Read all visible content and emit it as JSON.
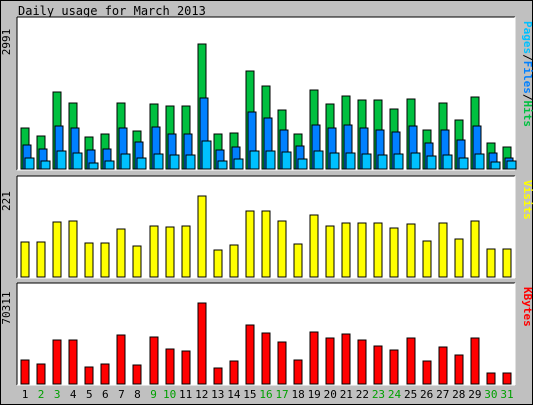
{
  "title": "Daily usage for March 2013",
  "colors": {
    "background": "#c0c0c0",
    "panel": "#ffffff",
    "hits": "#00c040",
    "files": "#0080ff",
    "pages": "#00c0ff",
    "visits": "#ffff00",
    "kbytes": "#ff0000",
    "weekend_label": "#00a000",
    "weekday_label": "#000000"
  },
  "chart_data": [
    {
      "type": "bar",
      "panel": "hits-files-pages",
      "max_label": "2991",
      "ylim": [
        0,
        2991
      ],
      "legend": [
        "Pages",
        "/",
        "Files",
        "/",
        "Hits"
      ],
      "legend_colors": [
        "#00c0ff",
        "#000000",
        "#0080ff",
        "#000000",
        "#00c040"
      ],
      "categories": [
        "1",
        "2",
        "3",
        "4",
        "5",
        "6",
        "7",
        "8",
        "9",
        "10",
        "11",
        "12",
        "13",
        "14",
        "15",
        "16",
        "17",
        "18",
        "19",
        "20",
        "21",
        "22",
        "23",
        "24",
        "25",
        "26",
        "27",
        "28",
        "29",
        "30",
        "31"
      ],
      "series": [
        {
          "name": "Hits",
          "values": [
            990,
            790,
            1840,
            1570,
            770,
            830,
            1580,
            920,
            1550,
            1510,
            1510,
            2991,
            830,
            870,
            2350,
            1990,
            1400,
            830,
            1880,
            1560,
            1740,
            1640,
            1640,
            1440,
            1680,
            930,
            1570,
            1180,
            1720,
            620,
            530
          ]
        },
        {
          "name": "Files",
          "values": [
            580,
            490,
            1030,
            970,
            450,
            470,
            980,
            650,
            1010,
            840,
            840,
            1690,
            460,
            520,
            1360,
            1210,
            940,
            550,
            1050,
            990,
            1060,
            990,
            930,
            890,
            1020,
            620,
            940,
            690,
            1020,
            390,
            270
          ]
        },
        {
          "name": "Pages",
          "values": [
            260,
            200,
            430,
            380,
            150,
            200,
            370,
            260,
            370,
            340,
            340,
            660,
            200,
            250,
            440,
            420,
            400,
            230,
            420,
            380,
            380,
            360,
            340,
            360,
            380,
            300,
            330,
            260,
            370,
            170,
            180
          ]
        }
      ]
    },
    {
      "type": "bar",
      "panel": "visits",
      "max_label": "221",
      "ylim": [
        0,
        221
      ],
      "legend": [
        "Visits"
      ],
      "legend_colors": [
        "#ffff00"
      ],
      "categories": [
        "1",
        "2",
        "3",
        "4",
        "5",
        "6",
        "7",
        "8",
        "9",
        "10",
        "11",
        "12",
        "13",
        "14",
        "15",
        "16",
        "17",
        "18",
        "19",
        "20",
        "21",
        "22",
        "23",
        "24",
        "25",
        "26",
        "27",
        "28",
        "29",
        "30",
        "31"
      ],
      "series": [
        {
          "name": "Visits",
          "values": [
            96,
            96,
            150,
            153,
            93,
            94,
            131,
            84,
            138,
            136,
            138,
            221,
            73,
            87,
            179,
            179,
            152,
            90,
            170,
            140,
            148,
            146,
            146,
            135,
            144,
            99,
            148,
            103,
            152,
            76,
            76
          ]
        }
      ]
    },
    {
      "type": "bar",
      "panel": "kbytes",
      "max_label": "70311",
      "ylim": [
        0,
        70311
      ],
      "legend": [
        "KBytes"
      ],
      "legend_colors": [
        "#ff0000"
      ],
      "categories": [
        "1",
        "2",
        "3",
        "4",
        "5",
        "6",
        "7",
        "8",
        "9",
        "10",
        "11",
        "12",
        "13",
        "14",
        "15",
        "16",
        "17",
        "18",
        "19",
        "20",
        "21",
        "22",
        "23",
        "24",
        "25",
        "26",
        "27",
        "28",
        "29",
        "30",
        "31"
      ],
      "series": [
        {
          "name": "KBytes",
          "values": [
            20500,
            17000,
            38500,
            38000,
            15000,
            17000,
            42600,
            16500,
            41100,
            30100,
            28900,
            70311,
            14300,
            20000,
            51500,
            44200,
            36100,
            20500,
            45300,
            39600,
            43400,
            38000,
            33100,
            29200,
            39700,
            20000,
            32400,
            25400,
            39900,
            9800,
            9800
          ]
        }
      ]
    }
  ],
  "days": [
    {
      "label": "1",
      "weekend": false
    },
    {
      "label": "2",
      "weekend": true
    },
    {
      "label": "3",
      "weekend": true
    },
    {
      "label": "4",
      "weekend": false
    },
    {
      "label": "5",
      "weekend": false
    },
    {
      "label": "6",
      "weekend": false
    },
    {
      "label": "7",
      "weekend": false
    },
    {
      "label": "8",
      "weekend": false
    },
    {
      "label": "9",
      "weekend": true
    },
    {
      "label": "10",
      "weekend": true
    },
    {
      "label": "11",
      "weekend": false
    },
    {
      "label": "12",
      "weekend": false
    },
    {
      "label": "13",
      "weekend": false
    },
    {
      "label": "14",
      "weekend": false
    },
    {
      "label": "15",
      "weekend": false
    },
    {
      "label": "16",
      "weekend": true
    },
    {
      "label": "17",
      "weekend": true
    },
    {
      "label": "18",
      "weekend": false
    },
    {
      "label": "19",
      "weekend": false
    },
    {
      "label": "20",
      "weekend": false
    },
    {
      "label": "21",
      "weekend": false
    },
    {
      "label": "22",
      "weekend": false
    },
    {
      "label": "23",
      "weekend": true
    },
    {
      "label": "24",
      "weekend": true
    },
    {
      "label": "25",
      "weekend": false
    },
    {
      "label": "26",
      "weekend": false
    },
    {
      "label": "27",
      "weekend": false
    },
    {
      "label": "28",
      "weekend": false
    },
    {
      "label": "29",
      "weekend": false
    },
    {
      "label": "30",
      "weekend": true
    },
    {
      "label": "31",
      "weekend": true
    }
  ]
}
